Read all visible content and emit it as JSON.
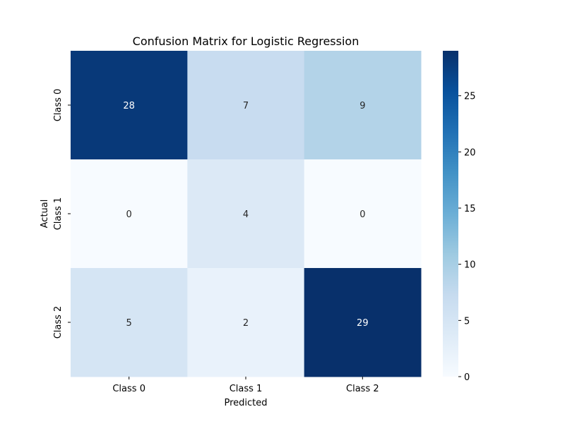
{
  "chart_data": {
    "type": "heatmap",
    "title": "Confusion Matrix for Logistic Regression",
    "xlabel": "Predicted",
    "ylabel": "Actual",
    "x_categories": [
      "Class 0",
      "Class 1",
      "Class 2"
    ],
    "y_categories": [
      "Class 0",
      "Class 1",
      "Class 2"
    ],
    "values": [
      [
        28,
        7,
        9
      ],
      [
        0,
        4,
        0
      ],
      [
        5,
        2,
        29
      ]
    ],
    "colormap": "Blues",
    "color_range": [
      0,
      29
    ],
    "colorbar_ticks": [
      0,
      5,
      10,
      15,
      20,
      25
    ],
    "colorbar_tick_labels": [
      "0",
      "5",
      "10",
      "15",
      "20",
      "25"
    ],
    "colorbar_position": "right",
    "grid": false
  }
}
